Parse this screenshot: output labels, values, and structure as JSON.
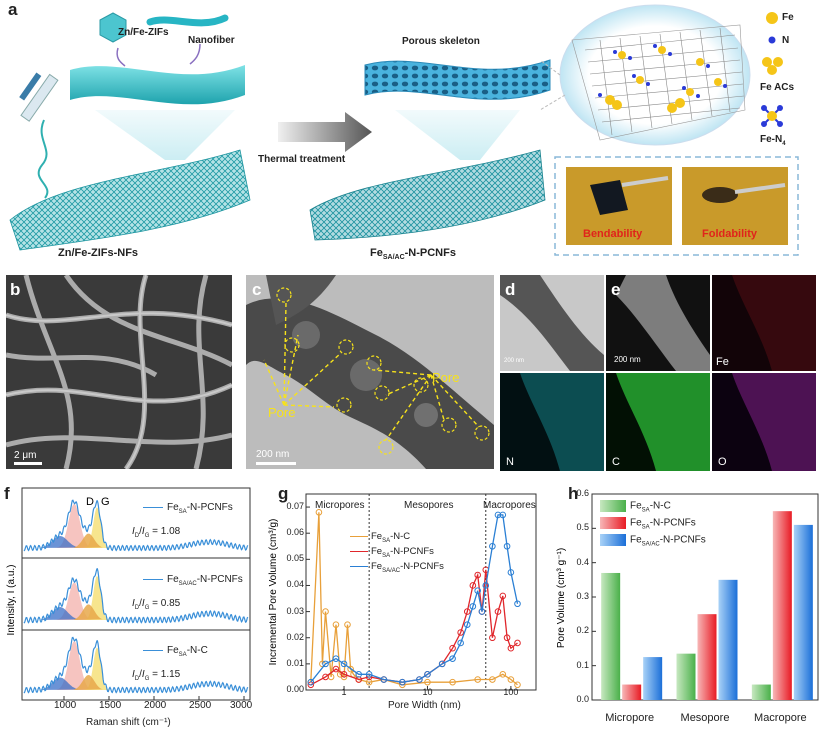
{
  "panel_a": {
    "label": "a",
    "zif_label": "Zn/Fe-ZIFs",
    "nanofiber_label": "Nanofiber",
    "skeleton_label": "Porous skeleton",
    "thermal_label": "Thermal treatment",
    "left_caption": "Zn/Fe-ZIFs-NFs",
    "right_caption_main": "Fe",
    "right_caption_sub": "SA/AC",
    "right_caption_rest": "-N-PCNFs",
    "legend": {
      "fe": "Fe",
      "n": "N",
      "fe_acs": "Fe ACs",
      "fe_n4_main": "Fe-N",
      "fe_n4_sub": "4"
    },
    "bend_label": "Bendability",
    "fold_label": "Foldability"
  },
  "panel_b": {
    "label": "b",
    "scale": "2 μm"
  },
  "panel_c": {
    "label": "c",
    "scale": "200 nm",
    "pore_left": "Pore",
    "pore_right": "Pore"
  },
  "panel_d": {
    "label": "d",
    "scale": "200 nm"
  },
  "panel_e": {
    "label": "e",
    "scale": "200 nm",
    "maps": [
      "Fe",
      "N",
      "C",
      "O"
    ]
  },
  "panel_f": {
    "label": "f",
    "ylabel": "Intensity, I (a.u.)",
    "xlabel": "Raman shift (cm⁻¹)",
    "peak_d": "D",
    "peak_g": "G",
    "xticks": [
      "1000",
      "1500",
      "2000",
      "2500",
      "3000"
    ],
    "spectra": [
      {
        "name_main": "Fe",
        "name_sub": "SA",
        "name_rest": "-N-PCNFs",
        "ratio": "= 1.08"
      },
      {
        "name_main": "Fe",
        "name_sub": "SA/AC",
        "name_rest": "-N-PCNFs",
        "ratio": "= 0.85"
      },
      {
        "name_main": "Fe",
        "name_sub": "SA",
        "name_rest": "-N-C",
        "ratio": "= 1.15"
      }
    ],
    "ratio_prefix_i": "I",
    "ratio_sub_d": "D",
    "ratio_slash": "/",
    "ratio_sub_g": "G"
  },
  "panel_g": {
    "label": "g",
    "ylabel": "Incremental Pore Volume (cm³/g)",
    "xlabel": "Pore Width (nm)",
    "regions": [
      "Micropores",
      "Mesopores",
      "Macropores"
    ],
    "yticks": [
      "0.00",
      "0.01",
      "0.02",
      "0.03",
      "0.04",
      "0.05",
      "0.06",
      "0.07"
    ],
    "xticks": [
      "1",
      "10",
      "100"
    ],
    "legend": [
      {
        "main": "Fe",
        "sub": "SA",
        "rest": "-N-C",
        "color": "#e8a03a"
      },
      {
        "main": "Fe",
        "sub": "SA",
        "rest": "-N-PCNFs",
        "color": "#e0262b"
      },
      {
        "main": "Fe",
        "sub": "SA/AC",
        "rest": "-N-PCNFs",
        "color": "#2a7fd4"
      }
    ]
  },
  "panel_h": {
    "label": "h",
    "ylabel": "Pore Volume (cm³ g⁻¹)",
    "yticks": [
      "0.0",
      "0.1",
      "0.2",
      "0.3",
      "0.4",
      "0.5",
      "0.6"
    ],
    "legend": [
      {
        "main": "Fe",
        "sub": "SA",
        "rest": "-N-C",
        "color": "#5cb85c"
      },
      {
        "main": "Fe",
        "sub": "SA",
        "rest": "-N-PCNFs",
        "color": "#e8262b"
      },
      {
        "main": "Fe",
        "sub": "SA/AC",
        "rest": "-N-PCNFs",
        "color": "#2a7fe0"
      }
    ]
  },
  "chart_data": [
    {
      "type": "bar",
      "categories": [
        "Micropore",
        "Mesopore",
        "Macropore"
      ],
      "series": [
        {
          "name": "FeSA-N-C",
          "values": [
            0.37,
            0.135,
            0.045
          ]
        },
        {
          "name": "FeSA-N-PCNFs",
          "values": [
            0.045,
            0.25,
            0.55
          ]
        },
        {
          "name": "FeSA/AC-N-PCNFs",
          "values": [
            0.125,
            0.35,
            0.51
          ]
        }
      ],
      "ylabel": "Pore Volume (cm³ g⁻¹)",
      "ylim": [
        0,
        0.6
      ]
    },
    {
      "type": "line",
      "xlabel": "Pore Width (nm)",
      "ylabel": "Incremental Pore Volume (cm³/g)",
      "xscale": "log",
      "xlim": [
        0.35,
        200
      ],
      "ylim": [
        0,
        0.075
      ],
      "series": [
        {
          "name": "FeSA-N-C",
          "x": [
            0.4,
            0.5,
            0.55,
            0.6,
            0.7,
            0.8,
            0.9,
            1.0,
            1.1,
            1.2,
            1.3,
            1.5,
            2,
            3,
            5,
            10,
            20,
            40,
            60,
            80,
            100,
            120
          ],
          "y": [
            0.003,
            0.068,
            0.01,
            0.03,
            0.005,
            0.025,
            0.006,
            0.005,
            0.025,
            0.008,
            0.006,
            0.004,
            0.003,
            0.004,
            0.002,
            0.003,
            0.003,
            0.004,
            0.004,
            0.006,
            0.004,
            0.002
          ]
        },
        {
          "name": "FeSA-N-PCNFs",
          "x": [
            0.4,
            0.6,
            0.8,
            1.0,
            1.5,
            2,
            3,
            5,
            8,
            10,
            15,
            20,
            25,
            30,
            35,
            40,
            45,
            50,
            60,
            70,
            80,
            90,
            100,
            120
          ],
          "y": [
            0.002,
            0.005,
            0.008,
            0.006,
            0.004,
            0.005,
            0.004,
            0.003,
            0.004,
            0.006,
            0.01,
            0.016,
            0.022,
            0.03,
            0.04,
            0.044,
            0.03,
            0.046,
            0.02,
            0.03,
            0.036,
            0.02,
            0.016,
            0.018
          ]
        },
        {
          "name": "FeSA/AC-N-PCNFs",
          "x": [
            0.4,
            0.6,
            0.8,
            1.0,
            1.5,
            2,
            3,
            5,
            8,
            10,
            15,
            20,
            25,
            30,
            35,
            40,
            45,
            50,
            60,
            70,
            80,
            90,
            100,
            120
          ],
          "y": [
            0.003,
            0.01,
            0.012,
            0.01,
            0.006,
            0.006,
            0.004,
            0.003,
            0.004,
            0.006,
            0.01,
            0.012,
            0.018,
            0.025,
            0.032,
            0.038,
            0.03,
            0.04,
            0.055,
            0.067,
            0.067,
            0.055,
            0.045,
            0.033
          ]
        }
      ]
    }
  ]
}
